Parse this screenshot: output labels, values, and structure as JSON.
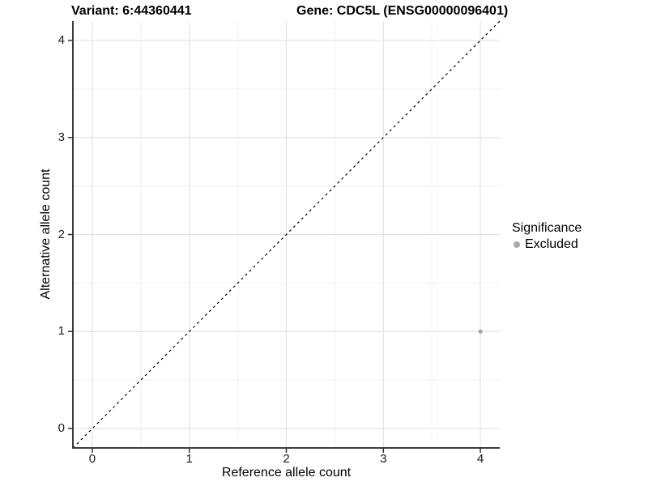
{
  "titles": {
    "variant": "Variant: 6:44360441",
    "gene": "Gene: CDC5L (ENSG00000096401)"
  },
  "chart_data": {
    "type": "scatter",
    "title_left": "Variant: 6:44360441",
    "title_right": "Gene: CDC5L (ENSG00000096401)",
    "xlabel": "Reference allele count",
    "ylabel": "Alternative allele count",
    "xlim": [
      -0.2,
      4.2
    ],
    "ylim": [
      -0.2,
      4.2
    ],
    "x_ticks": [
      0,
      1,
      2,
      3,
      4
    ],
    "y_ticks": [
      0,
      1,
      2,
      3,
      4
    ],
    "minor_ticks": [
      0.5,
      1.5,
      2.5,
      3.5
    ],
    "grid": true,
    "reference_line": {
      "type": "identity",
      "style": "dashed",
      "color": "#000000"
    },
    "series": [
      {
        "name": "Excluded",
        "color": "#aaaaaa",
        "points": [
          {
            "x": 4,
            "y": 1
          }
        ]
      }
    ],
    "legend": {
      "title": "Significance",
      "position": "right",
      "items": [
        {
          "label": "Excluded",
          "color": "#aaaaaa"
        }
      ]
    }
  },
  "colors": {
    "background": "#ffffff",
    "grid_major": "#e3e3e3",
    "grid_minor": "#f0f0f0",
    "axis_line": "#3c3c3c",
    "tick_mark": "#333333",
    "point": "#aaaaaa",
    "reference_line": "#000000"
  }
}
